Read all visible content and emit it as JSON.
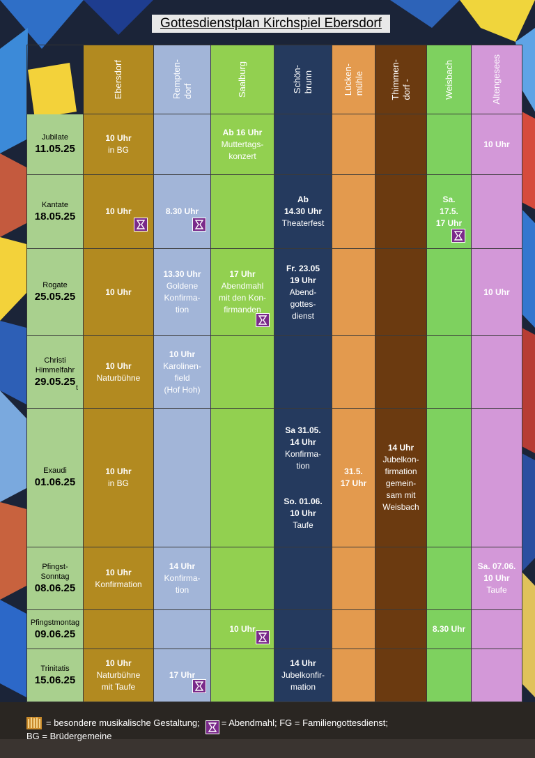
{
  "title": "Gottesdienstplan Kirchspiel Ebersdorf",
  "columns": [
    "Ebersdorf",
    "Rempten-\ndorf",
    "Saalburg",
    "Schön-\nbrunn",
    "Lücken-\nmühle",
    "Thimmen-\ndorf -",
    "Weisbach",
    "Altengesees"
  ],
  "colors": {
    "label": "#a9d08e",
    "Ebersdorf": "#b28a20",
    "Remptendorf": "#a2b5d8",
    "Saalburg": "#92d050",
    "Schönbrunn": "#253a5e",
    "Lückenmühle": "#e39a4e",
    "Thimmendorf": "#6b3a10",
    "Weisbach": "#7ed15f",
    "Altengesees": "#d398d8",
    "abendmahl_icon": "#7a2a8a"
  },
  "rows": [
    {
      "name": "Jubilate",
      "date": "11.05.25",
      "cells": [
        "10 Uhr\nin BG",
        "",
        "Ab 16 Uhr\nMuttertags-\nkonzert",
        "",
        "",
        "",
        "",
        "10 Uhr"
      ]
    },
    {
      "name": "Kantate",
      "date": "18.05.25",
      "cells": [
        "10 Uhr",
        "8.30 Uhr",
        "",
        "Ab\n14.30 Uhr\nTheaterfest",
        "",
        "",
        "Sa.\n17.5.\n17 Uhr",
        ""
      ]
    },
    {
      "name": "Rogate",
      "date": "25.05.25",
      "cells": [
        "10 Uhr",
        "13.30 Uhr\nGoldene\nKonfirma-\ntion",
        "17 Uhr\nAbendmahl\nmit den Kon-\nfirmanden",
        "Fr. 23.05\n19 Uhr\nAbend-\ngottes-\ndienst",
        "",
        "",
        "",
        "10 Uhr"
      ]
    },
    {
      "name": "Christi\nHimmelfahr",
      "date": "29.05.25",
      "cells": [
        "10 Uhr\nNaturbühne",
        "10 Uhr\nKarolinen-\nfield\n(Hof Hoh)",
        "",
        "",
        "",
        "",
        "",
        ""
      ]
    },
    {
      "name": "Exaudi",
      "date": "01.06.25",
      "cells": [
        "10 Uhr\nin BG",
        "",
        "",
        "Sa 31.05.\n14 Uhr\nKonfirma-\ntion\n\n\nSo. 01.06.\n10 Uhr\nTaufe",
        "31.5.\n17 Uhr",
        "14 Uhr\nJubelkon-\nfirmation\ngemein-\nsam mit\nWeisbach",
        "",
        ""
      ]
    },
    {
      "name": "Pfingst-\nSonntag",
      "date": "08.06.25",
      "cells": [
        "10 Uhr\nKonfirmation",
        "14 Uhr\nKonfirma-\ntion",
        "",
        "",
        "",
        "",
        "",
        "Sa. 07.06.\n10 Uhr\nTaufe"
      ]
    },
    {
      "name": "Pfingstmontag",
      "date": "09.06.25",
      "cells": [
        "",
        "",
        "10 Uhr",
        "",
        "",
        "",
        "8.30 Uhr",
        ""
      ]
    },
    {
      "name": "Trinitatis",
      "date": "15.06.25",
      "cells": [
        "10 Uhr\nNaturbühne\nmit Taufe",
        "17 Uhr",
        "",
        "14 Uhr\nJubelkonfir-\nmation",
        "",
        "",
        "",
        ""
      ]
    }
  ],
  "legend": {
    "music_text": "= besondere musikalische Gestaltung;",
    "abendmahl_text": "= Abendmahl; FG = Familiengottesdienst;",
    "bg_text": "BG = Brüdergemeine",
    "music_icon": "organ-icon",
    "abendmahl_icon": "chalice-icon"
  },
  "stray_mark": "t"
}
